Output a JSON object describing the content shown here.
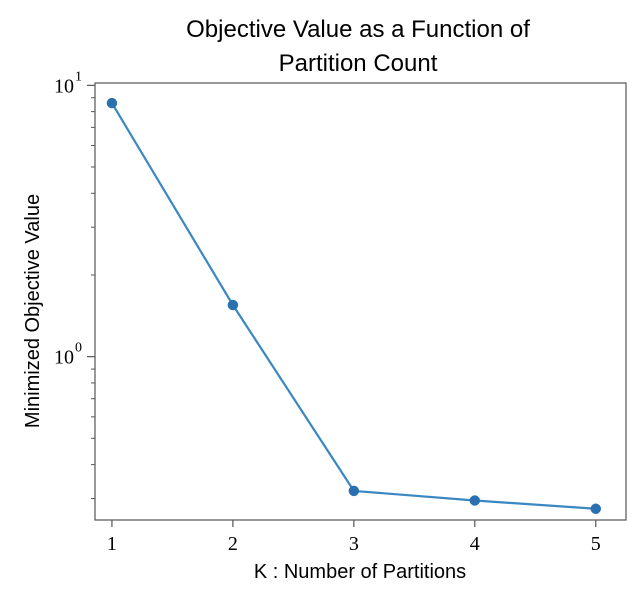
{
  "chart_data": {
    "type": "line",
    "title_lines": [
      "Objective Value as a Function of",
      "Partition Count"
    ],
    "xlabel": "K : Number of Partitions",
    "ylabel": "Minimized Objective Value",
    "x": [
      1,
      2,
      3,
      4,
      5
    ],
    "xticks": [
      "1",
      "2",
      "3",
      "4",
      "5"
    ],
    "xlim": [
      0.86,
      5.25
    ],
    "y_scale": "log",
    "ylim": [
      0.25,
      10.2
    ],
    "y_major_ticks": [
      {
        "value": 1,
        "base": "10",
        "exp": "0"
      },
      {
        "value": 10,
        "base": "10",
        "exp": "1"
      }
    ],
    "y_minor_ticks": [
      0.3,
      0.4,
      0.5,
      0.6,
      0.7,
      0.8,
      0.9,
      2,
      3,
      4,
      5,
      6,
      7,
      8,
      9
    ],
    "series": [
      {
        "values": [
          8.6,
          1.55,
          0.32,
          0.295,
          0.275
        ],
        "color": "#3a87c2"
      }
    ],
    "grid": false,
    "legend": "none"
  }
}
